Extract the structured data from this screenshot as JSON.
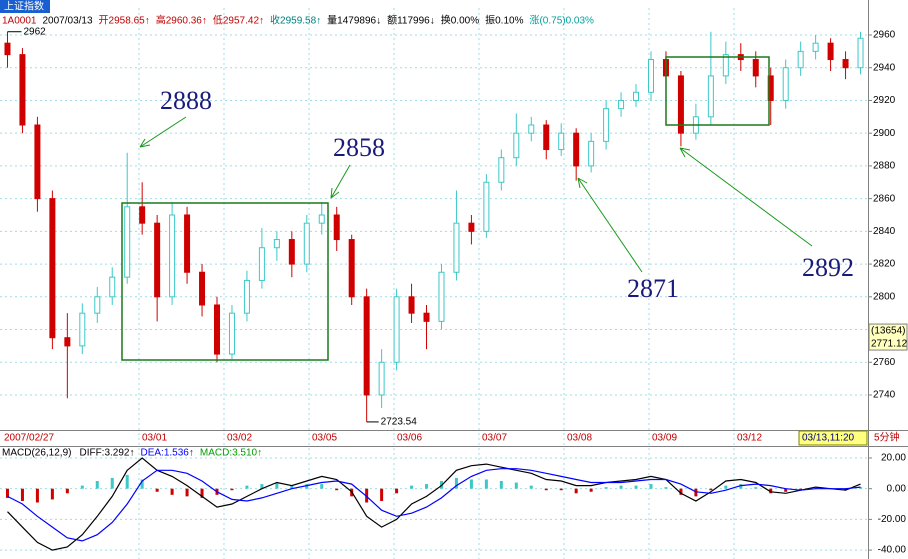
{
  "header": {
    "tab": "上证指数",
    "info": [
      {
        "text": "1A0001",
        "color": "#c00000"
      },
      {
        "text": "2007/03/13",
        "color": "#000000"
      },
      {
        "text": "开2958.65↑",
        "color": "#c00000"
      },
      {
        "text": "高2960.36↑",
        "color": "#c00000"
      },
      {
        "text": "低2957.42↑",
        "color": "#c00000"
      },
      {
        "text": "收2959.58↑",
        "color": "#008080"
      },
      {
        "text": "量1479896↓",
        "color": "#000000"
      },
      {
        "text": "额117996↓",
        "color": "#000000"
      },
      {
        "text": "换0.00%",
        "color": "#000000"
      },
      {
        "text": "振0.10%",
        "color": "#000000"
      },
      {
        "text": "涨(0.75)0.03%",
        "color": "#00a0a0"
      }
    ]
  },
  "chart_data": [
    {
      "type": "candlestick",
      "open": [
        2955,
        2948,
        2905,
        2860,
        2775,
        2770,
        2790,
        2800,
        2812,
        2855,
        2845,
        2800,
        2850,
        2815,
        2795,
        2765,
        2790,
        2810,
        2830,
        2835,
        2820,
        2845,
        2850,
        2835,
        2800,
        2740,
        2760,
        2800,
        2790,
        2785,
        2815,
        2845,
        2840,
        2870,
        2885,
        2900,
        2905,
        2890,
        2900,
        2880,
        2895,
        2915,
        2920,
        2925,
        2945,
        2935,
        2900,
        2910,
        2935,
        2948,
        2945,
        2935,
        2920,
        2940,
        2950,
        2955,
        2945,
        2940
      ],
      "high": [
        2962,
        2952,
        2910,
        2865,
        2790,
        2796,
        2806,
        2818,
        2888,
        2870,
        2850,
        2858,
        2855,
        2820,
        2800,
        2795,
        2816,
        2842,
        2840,
        2840,
        2850,
        2858,
        2855,
        2838,
        2805,
        2768,
        2805,
        2808,
        2795,
        2820,
        2865,
        2850,
        2875,
        2890,
        2912,
        2910,
        2908,
        2906,
        2903,
        2900,
        2920,
        2925,
        2930,
        2950,
        2950,
        2938,
        2918,
        2961.96,
        2956,
        2955,
        2950,
        2940,
        2945,
        2956,
        2960,
        2958,
        2950,
        2962
      ],
      "low": [
        2940,
        2900,
        2852,
        2768,
        2738,
        2765,
        2784,
        2795,
        2808,
        2838,
        2785,
        2795,
        2808,
        2788,
        2760,
        2762,
        2785,
        2805,
        2822,
        2812,
        2815,
        2838,
        2828,
        2795,
        2723.54,
        2732,
        2755,
        2784,
        2768,
        2780,
        2810,
        2832,
        2836,
        2865,
        2880,
        2895,
        2884,
        2886,
        2871,
        2876,
        2890,
        2910,
        2916,
        2920,
        2928,
        2892,
        2896,
        2905,
        2930,
        2938,
        2928,
        2905,
        2915,
        2935,
        2945,
        2938,
        2933,
        2936
      ],
      "close": [
        2948,
        2905,
        2860,
        2775,
        2770,
        2790,
        2800,
        2812,
        2855,
        2845,
        2800,
        2850,
        2815,
        2795,
        2765,
        2790,
        2810,
        2830,
        2835,
        2820,
        2845,
        2850,
        2835,
        2800,
        2740,
        2760,
        2800,
        2790,
        2785,
        2815,
        2845,
        2840,
        2870,
        2885,
        2900,
        2905,
        2890,
        2900,
        2880,
        2895,
        2915,
        2920,
        2925,
        2945,
        2935,
        2900,
        2910,
        2935,
        2948,
        2945,
        2935,
        2920,
        2940,
        2950,
        2955,
        2945,
        2940,
        2958
      ],
      "up_color": "#3cc8c8",
      "down_color": "#d00000",
      "ylim": [
        2718.6,
        2976.5
      ],
      "yticks": [
        2740,
        2760,
        2780,
        2800,
        2820,
        2840,
        2860,
        2880,
        2900,
        2920,
        2940,
        2960
      ],
      "grid": true,
      "x_labels": [
        "2007/02/27",
        "03/01",
        "03/02",
        "03/05",
        "03/06",
        "03/07",
        "03/08",
        "03/09",
        "03/12"
      ],
      "current_time": "03/13,11:20",
      "period": "5分钟",
      "cursor_volume": "(13654)",
      "cursor_price": 2771.12
    },
    {
      "type": "macd",
      "title": "MACD(26,12,9)",
      "indicators": [
        {
          "text": "DIFF:3.292↑",
          "color": "#000000"
        },
        {
          "text": "DEA:1.536↑",
          "color": "#0000ff"
        },
        {
          "text": "MACD:3.510↑",
          "color": "#00a000"
        }
      ],
      "histogram": [
        -6,
        -8,
        -9,
        -7,
        -3,
        2,
        5,
        7,
        9,
        6,
        -2,
        -4,
        -5,
        -6,
        -4,
        -1,
        2,
        3,
        4,
        2,
        3,
        3,
        -1,
        -5,
        -9,
        -8,
        -3,
        2,
        3,
        5,
        7,
        6,
        6,
        5,
        4,
        2,
        -1,
        -1,
        -3,
        -2,
        1,
        2,
        2,
        3,
        1,
        -4,
        -5,
        -1,
        2,
        3,
        1,
        -3,
        -2,
        -1,
        1,
        0,
        -1,
        1
      ],
      "pos_color": "#3cc8c8",
      "neg_color": "#d00000",
      "series": [
        {
          "color": "#000000",
          "values": [
            -15,
            -25,
            -35,
            -40,
            -38,
            -30,
            -18,
            -5,
            12,
            20,
            12,
            8,
            2,
            -5,
            -12,
            -10,
            -5,
            0,
            4,
            2,
            5,
            8,
            6,
            -2,
            -18,
            -25,
            -20,
            -10,
            -5,
            2,
            12,
            15,
            16,
            14,
            12,
            10,
            6,
            5,
            2,
            2,
            4,
            5,
            6,
            8,
            6,
            -3,
            -8,
            -2,
            5,
            6,
            4,
            -2,
            -3,
            -1,
            1,
            0,
            -1,
            3
          ]
        },
        {
          "color": "#0000ff",
          "values": [
            -5,
            -10,
            -18,
            -25,
            -32,
            -34,
            -30,
            -22,
            -10,
            5,
            12,
            12,
            10,
            5,
            -2,
            -7,
            -8,
            -6,
            -3,
            0,
            2,
            4,
            5,
            3,
            -5,
            -14,
            -18,
            -16,
            -12,
            -6,
            2,
            8,
            12,
            13,
            13,
            12,
            10,
            8,
            6,
            4,
            4,
            4,
            5,
            6,
            6,
            3,
            -2,
            -3,
            -1,
            2,
            3,
            2,
            0,
            -1,
            0,
            0,
            0,
            1
          ]
        }
      ],
      "ylim": [
        -44.5,
        26.5
      ],
      "yticks": [
        {
          "value": 20,
          "label": "20.00"
        },
        {
          "value": 0,
          "label": "0.00"
        },
        {
          "value": -20,
          "label": "-20.00"
        },
        {
          "value": -40,
          "label": "-40.00"
        }
      ],
      "grid": true
    }
  ]
}
